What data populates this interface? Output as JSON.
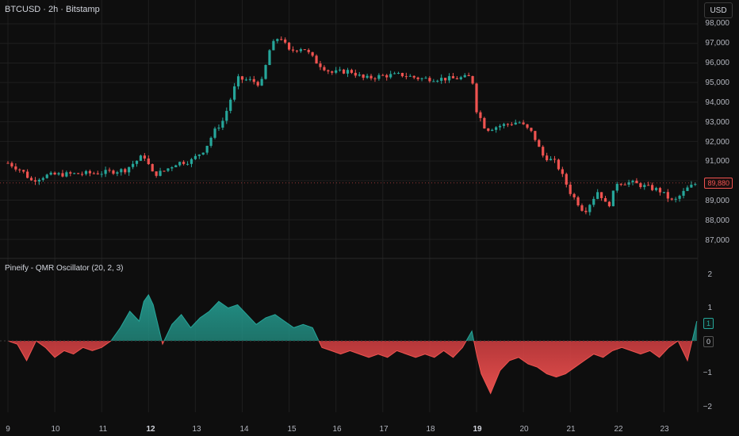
{
  "header": {
    "symbol_title": "BTCUSD · 2h · Bitstamp",
    "currency_button": "USD"
  },
  "indicator": {
    "title": "Pineify - QMR Oscillator (20, 2, 3)"
  },
  "price_axis": {
    "labels": [
      "98,000",
      "97,000",
      "96,000",
      "95,000",
      "94,000",
      "93,000",
      "92,000",
      "91,000",
      "89,880",
      "89,000",
      "88,000",
      "87,000"
    ],
    "current_price": "89,880"
  },
  "osc_axis": {
    "labels": [
      "2",
      "1",
      "−1",
      "−2"
    ],
    "value_badge": "1",
    "zero_badge": "0"
  },
  "time_axis": {
    "labels": [
      "9",
      "10",
      "11",
      "12",
      "13",
      "14",
      "15",
      "16",
      "17",
      "18",
      "19",
      "20",
      "21",
      "22",
      "23"
    ],
    "bold_labels": [
      "12",
      "19"
    ]
  },
  "colors": {
    "background": "#0e0e0e",
    "up": "#26a69a",
    "down": "#ef5350",
    "grid": "#1f1f1f",
    "divider": "#2a2a2a"
  },
  "chart_data": [
    {
      "type": "candlestick",
      "title": "BTCUSD · 2h · Bitstamp",
      "ylim": [
        86500,
        98600
      ],
      "x": [
        "9",
        "10",
        "11",
        "12",
        "13",
        "14",
        "15",
        "16",
        "17",
        "18",
        "19",
        "20",
        "21",
        "22",
        "23"
      ],
      "close_path": [
        [
          9.0,
          90900
        ],
        [
          9.3,
          90500
        ],
        [
          9.5,
          90000
        ],
        [
          9.8,
          90250
        ],
        [
          10.0,
          90300
        ],
        [
          10.5,
          90350
        ],
        [
          11.0,
          90400
        ],
        [
          11.5,
          90550
        ],
        [
          11.9,
          91300
        ],
        [
          12.1,
          90300
        ],
        [
          12.3,
          90450
        ],
        [
          12.6,
          90900
        ],
        [
          12.9,
          91000
        ],
        [
          13.2,
          91600
        ],
        [
          13.4,
          92500
        ],
        [
          13.6,
          93100
        ],
        [
          13.9,
          95200
        ],
        [
          14.2,
          95100
        ],
        [
          14.4,
          94900
        ],
        [
          14.6,
          96800
        ],
        [
          14.8,
          97400
        ],
        [
          15.0,
          96600
        ],
        [
          15.3,
          96800
        ],
        [
          15.6,
          96000
        ],
        [
          15.9,
          95500
        ],
        [
          16.3,
          95600
        ],
        [
          16.6,
          95200
        ],
        [
          17.0,
          95350
        ],
        [
          17.4,
          95400
        ],
        [
          17.8,
          95200
        ],
        [
          18.2,
          95200
        ],
        [
          18.5,
          95200
        ],
        [
          18.9,
          95300
        ],
        [
          19.0,
          93600
        ],
        [
          19.2,
          92600
        ],
        [
          19.5,
          92800
        ],
        [
          19.9,
          93000
        ],
        [
          20.2,
          92400
        ],
        [
          20.4,
          91300
        ],
        [
          20.7,
          90900
        ],
        [
          21.0,
          89400
        ],
        [
          21.3,
          88400
        ],
        [
          21.6,
          89500
        ],
        [
          21.8,
          88600
        ],
        [
          22.0,
          89900
        ],
        [
          22.3,
          89900
        ],
        [
          22.6,
          89700
        ],
        [
          22.9,
          89500
        ],
        [
          23.2,
          88900
        ],
        [
          23.5,
          89600
        ],
        [
          23.7,
          89880
        ]
      ]
    },
    {
      "type": "area",
      "title": "Pineify - QMR Oscillator (20, 2, 3)",
      "ylim": [
        -2.2,
        2.2
      ],
      "x": [
        9.0,
        9.2,
        9.4,
        9.6,
        9.8,
        10.0,
        10.2,
        10.4,
        10.6,
        10.8,
        11.0,
        11.2,
        11.4,
        11.6,
        11.8,
        11.9,
        12.0,
        12.1,
        12.3,
        12.5,
        12.7,
        12.9,
        13.1,
        13.3,
        13.5,
        13.7,
        13.9,
        14.1,
        14.3,
        14.5,
        14.7,
        14.9,
        15.1,
        15.3,
        15.5,
        15.7,
        15.9,
        16.1,
        16.3,
        16.5,
        16.7,
        16.9,
        17.1,
        17.3,
        17.5,
        17.7,
        17.9,
        18.1,
        18.3,
        18.5,
        18.7,
        18.9,
        19.0,
        19.1,
        19.3,
        19.5,
        19.7,
        19.9,
        20.1,
        20.3,
        20.5,
        20.7,
        20.9,
        21.1,
        21.3,
        21.5,
        21.7,
        21.9,
        22.1,
        22.3,
        22.5,
        22.7,
        22.9,
        23.1,
        23.3,
        23.5,
        23.7
      ],
      "values": [
        0.0,
        -0.1,
        -0.6,
        0.0,
        -0.2,
        -0.5,
        -0.3,
        -0.4,
        -0.2,
        -0.3,
        -0.2,
        0.0,
        0.4,
        0.9,
        0.6,
        1.2,
        1.4,
        1.1,
        -0.1,
        0.5,
        0.8,
        0.4,
        0.7,
        0.9,
        1.2,
        1.0,
        1.1,
        0.8,
        0.5,
        0.7,
        0.8,
        0.6,
        0.4,
        0.5,
        0.4,
        -0.2,
        -0.3,
        -0.4,
        -0.3,
        -0.4,
        -0.5,
        -0.4,
        -0.5,
        -0.3,
        -0.4,
        -0.5,
        -0.4,
        -0.5,
        -0.3,
        -0.5,
        -0.2,
        0.3,
        -0.4,
        -1.0,
        -1.6,
        -0.9,
        -0.6,
        -0.5,
        -0.7,
        -0.8,
        -1.0,
        -1.1,
        -1.0,
        -0.8,
        -0.6,
        -0.4,
        -0.5,
        -0.3,
        -0.2,
        -0.3,
        -0.4,
        -0.3,
        -0.5,
        -0.2,
        0.0,
        -0.6,
        0.6
      ]
    }
  ]
}
